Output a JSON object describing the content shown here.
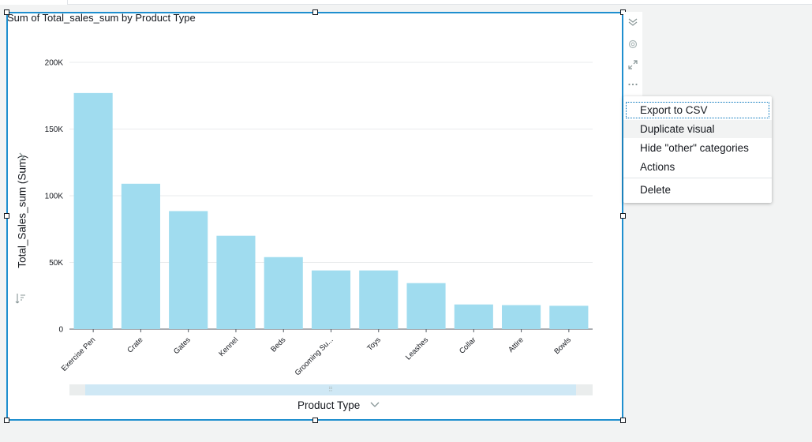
{
  "colors": {
    "bar": "#a0dcef",
    "selection_border": "#1f8fcf",
    "grid": "#e9ebed",
    "text": "#16191f"
  },
  "visual": {
    "title": "Sum of Total_sales_sum by Product Type",
    "y_axis_label": "Total_Sales_sum (Sum)",
    "x_axis_label": "Product Type"
  },
  "icons": {
    "collapse": "double-chevron-down-icon",
    "settings": "gear-icon",
    "expand": "expand-arrows-icon",
    "more": "ellipsis-icon",
    "y_expand": "chevron-right-icon",
    "x_expand": "chevron-down-icon",
    "sort": "sort-icon"
  },
  "menu": {
    "items": [
      {
        "label": "Export to CSV"
      },
      {
        "label": "Duplicate visual"
      },
      {
        "label": "Hide \"other\" categories"
      },
      {
        "label": "Actions"
      },
      {
        "label": "Delete"
      }
    ]
  },
  "chart_data": {
    "type": "bar",
    "title": "Sum of Total_sales_sum by Product Type",
    "xlabel": "Product Type",
    "ylabel": "Total_Sales_sum (Sum)",
    "categories": [
      "Exercise Pen",
      "Crate",
      "Gates",
      "Kennel",
      "Beds",
      "Grooming Su...",
      "Toys",
      "Leashes",
      "Collar",
      "Attire",
      "Bowls"
    ],
    "values": [
      177000,
      109000,
      88500,
      70000,
      54000,
      44000,
      44000,
      34500,
      18500,
      18000,
      17500
    ],
    "ylim": [
      0,
      200000
    ],
    "yticks": [
      0,
      50000,
      100000,
      150000,
      200000
    ],
    "ytick_labels": [
      "0",
      "50K",
      "100K",
      "150K",
      "200K"
    ],
    "grid": true,
    "legend": "none"
  }
}
